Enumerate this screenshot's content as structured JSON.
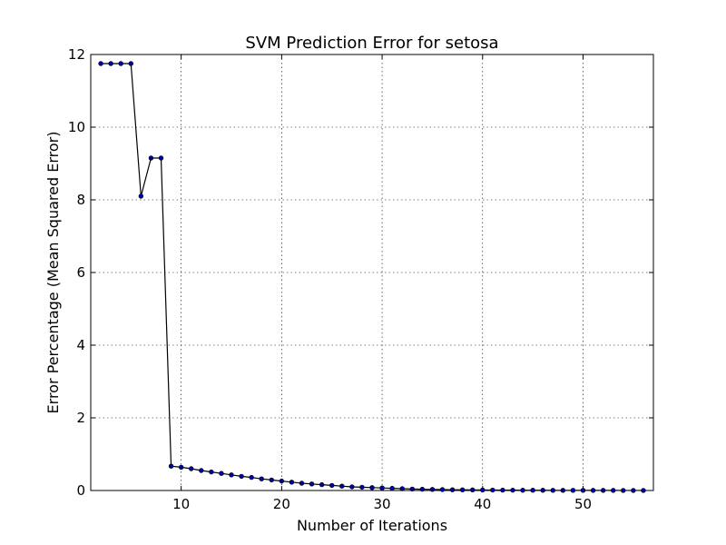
{
  "chart_data": {
    "type": "line",
    "title": "SVM Prediction Error for setosa",
    "xlabel": "Number of Iterations",
    "ylabel": "Error Percentage (Mean Squared Error)",
    "xlim": [
      1,
      57
    ],
    "ylim": [
      0,
      12
    ],
    "xticks": [
      10,
      20,
      30,
      40,
      50
    ],
    "yticks": [
      0,
      2,
      4,
      6,
      8,
      10,
      12
    ],
    "grid": true,
    "series": [
      {
        "color": "#0000aa",
        "marker": "circle",
        "x": [
          2,
          3,
          4,
          5,
          6,
          7,
          8,
          9,
          10,
          11,
          12,
          13,
          14,
          15,
          16,
          17,
          18,
          19,
          20,
          21,
          22,
          23,
          24,
          25,
          26,
          27,
          28,
          29,
          30,
          31,
          32,
          33,
          34,
          35,
          36,
          37,
          38,
          39,
          40,
          41,
          42,
          43,
          44,
          45,
          46,
          47,
          48,
          49,
          50,
          51,
          52,
          53,
          54,
          55,
          56
        ],
        "y": [
          11.75,
          11.75,
          11.75,
          11.75,
          8.1,
          9.15,
          9.15,
          0.67,
          0.64,
          0.6,
          0.55,
          0.51,
          0.47,
          0.43,
          0.39,
          0.36,
          0.32,
          0.29,
          0.26,
          0.23,
          0.2,
          0.18,
          0.16,
          0.14,
          0.12,
          0.1,
          0.09,
          0.08,
          0.07,
          0.06,
          0.05,
          0.04,
          0.035,
          0.03,
          0.025,
          0.02,
          0.018,
          0.016,
          0.014,
          0.012,
          0.01,
          0.009,
          0.008,
          0.007,
          0.006,
          0.005,
          0.005,
          0.004,
          0.004,
          0.003,
          0.003,
          0.003,
          0.002,
          0.002,
          0.002
        ]
      }
    ]
  }
}
